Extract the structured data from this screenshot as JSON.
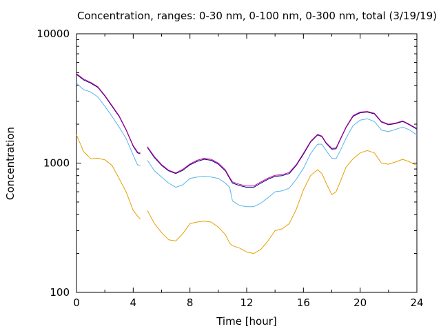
{
  "chart_data": {
    "type": "line",
    "title": "Concentration, ranges: 0-30 nm, 0-100 nm, 0-300 nm, total (3/19/19)",
    "xlabel": "Time [hour]",
    "ylabel": "Concentration",
    "xlim": [
      0,
      24
    ],
    "ylim": [
      100,
      10000
    ],
    "yscale": "log",
    "xticks": [
      0,
      4,
      8,
      12,
      16,
      20,
      24
    ],
    "yticks": [
      100,
      1000,
      10000
    ],
    "grid": false,
    "legend": "none",
    "x": [
      0,
      0.5,
      1,
      1.5,
      2,
      2.5,
      3,
      3.5,
      4,
      4.3,
      4.5,
      4.7,
      5,
      5.5,
      6,
      6.5,
      7,
      7.5,
      8,
      8.5,
      9,
      9.5,
      10,
      10.5,
      10.8,
      11,
      11.5,
      12,
      12.5,
      13,
      13.5,
      14,
      14.5,
      15,
      15.5,
      16,
      16.5,
      17,
      17.3,
      17.6,
      18,
      18.3,
      18.6,
      19,
      19.5,
      20,
      20.5,
      21,
      21.5,
      22,
      22.5,
      23,
      23.5,
      24
    ],
    "series": [
      {
        "name": "",
        "color": "#e69f00",
        "values": [
          1650,
          1230,
          1080,
          1090,
          1060,
          960,
          760,
          600,
          430,
          390,
          370,
          null,
          430,
          340,
          290,
          255,
          250,
          285,
          340,
          350,
          355,
          350,
          320,
          280,
          240,
          230,
          220,
          205,
          200,
          215,
          250,
          300,
          310,
          340,
          440,
          620,
          800,
          890,
          830,
          700,
          570,
          600,
          720,
          930,
          1080,
          1200,
          1250,
          1200,
          1000,
          980,
          1020,
          1070,
          1020,
          960
        ]
      },
      {
        "name": "",
        "color": "#56b4e9",
        "values": [
          4150,
          3700,
          3550,
          3250,
          2750,
          2300,
          1900,
          1550,
          1150,
          970,
          960,
          null,
          1050,
          870,
          780,
          700,
          650,
          680,
          760,
          780,
          790,
          780,
          760,
          700,
          650,
          510,
          470,
          460,
          460,
          490,
          540,
          600,
          610,
          640,
          750,
          910,
          1180,
          1400,
          1400,
          1250,
          1090,
          1080,
          1250,
          1550,
          1950,
          2150,
          2200,
          2100,
          1800,
          1750,
          1820,
          1900,
          1800,
          1650
        ]
      },
      {
        "name": "",
        "color": "#000080",
        "values": [
          4850,
          4400,
          4150,
          3850,
          3300,
          2750,
          2300,
          1800,
          1350,
          1200,
          1180,
          null,
          1320,
          1100,
          960,
          870,
          830,
          880,
          970,
          1030,
          1070,
          1050,
          980,
          870,
          760,
          700,
          670,
          650,
          650,
          700,
          750,
          790,
          800,
          830,
          960,
          1170,
          1450,
          1650,
          1600,
          1420,
          1280,
          1290,
          1520,
          1880,
          2300,
          2450,
          2480,
          2400,
          2080,
          1980,
          2020,
          2100,
          1970,
          1830
        ]
      },
      {
        "name": "",
        "color": "#cc0099",
        "values": [
          4920,
          4470,
          4210,
          3900,
          3340,
          2790,
          2330,
          1820,
          1370,
          1220,
          1200,
          null,
          1340,
          1120,
          975,
          880,
          840,
          895,
          985,
          1050,
          1090,
          1070,
          1000,
          885,
          775,
          715,
          685,
          665,
          665,
          715,
          765,
          805,
          815,
          845,
          975,
          1190,
          1470,
          1670,
          1620,
          1440,
          1300,
          1310,
          1540,
          1900,
          2330,
          2480,
          2510,
          2430,
          2100,
          2000,
          2040,
          2120,
          1990,
          1850
        ]
      }
    ]
  }
}
